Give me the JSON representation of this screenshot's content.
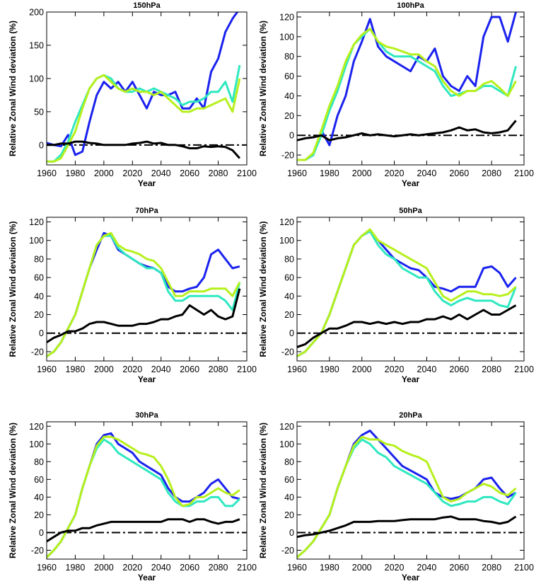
{
  "figure": {
    "ylabel": "Relative Zonal Wind deviation (%)",
    "xlabel": "Year"
  },
  "colors": {
    "blue": "#1a22ee",
    "cyan": "#2ee8c0",
    "lime": "#b6f01c",
    "black": "#000000"
  },
  "chart_data": [
    {
      "type": "line",
      "title": "150hPa",
      "xlabel": "Year",
      "ylabel": "Relative Zonal Wind deviation (%)",
      "xlim": [
        1960,
        2100
      ],
      "ylim": [
        -30,
        200
      ],
      "xticks": [
        1960,
        1980,
        2000,
        2020,
        2040,
        2060,
        2080,
        2100
      ],
      "yticks": [
        0,
        50,
        100,
        150,
        200
      ],
      "grid": false,
      "reference_line": 0,
      "x": [
        1960,
        1965,
        1970,
        1975,
        1980,
        1985,
        1990,
        1995,
        2000,
        2005,
        2010,
        2015,
        2020,
        2025,
        2030,
        2035,
        2040,
        2045,
        2050,
        2055,
        2060,
        2065,
        2070,
        2075,
        2080,
        2085,
        2090,
        2095
      ],
      "series": [
        {
          "color": "blue",
          "values": [
            3,
            0,
            -2,
            15,
            -15,
            -10,
            35,
            75,
            95,
            85,
            95,
            80,
            95,
            75,
            55,
            80,
            75,
            75,
            80,
            55,
            55,
            70,
            55,
            110,
            130,
            170,
            190,
            205
          ]
        },
        {
          "color": "cyan",
          "values": [
            -25,
            -25,
            -15,
            5,
            35,
            60,
            85,
            100,
            105,
            100,
            85,
            80,
            80,
            85,
            80,
            85,
            80,
            75,
            70,
            60,
            65,
            65,
            70,
            80,
            80,
            95,
            65,
            120
          ]
        },
        {
          "color": "lime",
          "values": [
            -25,
            -25,
            -20,
            0,
            20,
            55,
            85,
            100,
            105,
            95,
            85,
            80,
            85,
            80,
            80,
            75,
            80,
            70,
            60,
            50,
            50,
            55,
            55,
            60,
            65,
            70,
            50,
            100
          ]
        },
        {
          "color": "black",
          "values": [
            0,
            0,
            2,
            2,
            5,
            5,
            3,
            2,
            0,
            0,
            0,
            0,
            2,
            3,
            5,
            2,
            3,
            0,
            0,
            -2,
            -5,
            -5,
            -2,
            -3,
            -2,
            -3,
            -8,
            -20
          ]
        }
      ]
    },
    {
      "type": "line",
      "title": "100hPa",
      "xlabel": "Year",
      "ylabel": "Relative Zonal Wind deviation (%)",
      "xlim": [
        1960,
        2100
      ],
      "ylim": [
        -30,
        125
      ],
      "xticks": [
        1960,
        1980,
        2000,
        2020,
        2040,
        2060,
        2080,
        2100
      ],
      "yticks": [
        -20,
        0,
        20,
        40,
        60,
        80,
        100,
        120
      ],
      "grid": false,
      "reference_line": 0,
      "x": [
        1960,
        1965,
        1970,
        1975,
        1980,
        1985,
        1990,
        1995,
        2000,
        2005,
        2010,
        2015,
        2020,
        2025,
        2030,
        2035,
        2040,
        2045,
        2050,
        2055,
        2060,
        2065,
        2070,
        2075,
        2080,
        2085,
        2090,
        2095
      ],
      "series": [
        {
          "color": "blue",
          "values": [
            -25,
            -25,
            -20,
            5,
            -10,
            20,
            40,
            75,
            95,
            118,
            90,
            80,
            75,
            70,
            65,
            80,
            75,
            88,
            60,
            50,
            45,
            60,
            50,
            100,
            120,
            120,
            95,
            125
          ]
        },
        {
          "color": "cyan",
          "values": [
            -25,
            -25,
            -20,
            0,
            25,
            45,
            70,
            92,
            100,
            108,
            95,
            85,
            80,
            80,
            80,
            75,
            70,
            65,
            50,
            40,
            42,
            45,
            45,
            50,
            50,
            45,
            40,
            70
          ]
        },
        {
          "color": "lime",
          "values": [
            -25,
            -25,
            -18,
            5,
            30,
            50,
            75,
            92,
            102,
            108,
            95,
            90,
            88,
            85,
            82,
            82,
            75,
            70,
            55,
            45,
            40,
            45,
            45,
            52,
            55,
            48,
            40,
            55
          ]
        },
        {
          "color": "black",
          "values": [
            -5,
            -3,
            -2,
            0,
            -5,
            -3,
            -2,
            0,
            2,
            0,
            1,
            0,
            -1,
            0,
            1,
            0,
            1,
            2,
            3,
            5,
            8,
            5,
            6,
            3,
            2,
            3,
            5,
            15
          ]
        }
      ]
    },
    {
      "type": "line",
      "title": "70hPa",
      "xlabel": "Year",
      "ylabel": "Relative Zonal Wind deviation (%)",
      "xlim": [
        1960,
        2100
      ],
      "ylim": [
        -30,
        125
      ],
      "xticks": [
        1960,
        1980,
        2000,
        2020,
        2040,
        2060,
        2080,
        2100
      ],
      "yticks": [
        -20,
        0,
        20,
        40,
        60,
        80,
        100,
        120
      ],
      "grid": false,
      "reference_line": 0,
      "x": [
        1960,
        1965,
        1970,
        1975,
        1980,
        1985,
        1990,
        1995,
        2000,
        2005,
        2010,
        2015,
        2020,
        2025,
        2030,
        2035,
        2040,
        2045,
        2050,
        2055,
        2060,
        2065,
        2070,
        2075,
        2080,
        2085,
        2090,
        2095
      ],
      "series": [
        {
          "color": "blue",
          "values": [
            -25,
            -20,
            -10,
            5,
            20,
            45,
            70,
            90,
            108,
            105,
            90,
            85,
            80,
            75,
            72,
            70,
            65,
            50,
            45,
            45,
            48,
            50,
            60,
            85,
            90,
            80,
            70,
            72
          ]
        },
        {
          "color": "cyan",
          "values": [
            -25,
            -20,
            -10,
            5,
            20,
            45,
            70,
            95,
            105,
            105,
            92,
            85,
            80,
            75,
            70,
            70,
            65,
            45,
            35,
            35,
            40,
            40,
            40,
            40,
            40,
            35,
            25,
            55
          ]
        },
        {
          "color": "lime",
          "values": [
            -25,
            -20,
            -10,
            5,
            20,
            45,
            70,
            95,
            105,
            108,
            95,
            90,
            88,
            85,
            80,
            78,
            70,
            55,
            40,
            40,
            45,
            45,
            45,
            48,
            48,
            48,
            40,
            55
          ]
        },
        {
          "color": "black",
          "values": [
            -10,
            -5,
            -2,
            2,
            2,
            5,
            10,
            12,
            12,
            10,
            8,
            8,
            8,
            10,
            10,
            12,
            15,
            15,
            18,
            20,
            30,
            25,
            20,
            25,
            18,
            15,
            18,
            48
          ]
        }
      ]
    },
    {
      "type": "line",
      "title": "50hPa",
      "xlabel": "Year",
      "ylabel": "Relative Zonal Wind deviation (%)",
      "xlim": [
        1960,
        2100
      ],
      "ylim": [
        -30,
        125
      ],
      "xticks": [
        1960,
        1980,
        2000,
        2020,
        2040,
        2060,
        2080,
        2100
      ],
      "yticks": [
        -20,
        0,
        20,
        40,
        60,
        80,
        100,
        120
      ],
      "grid": false,
      "reference_line": 0,
      "x": [
        1960,
        1965,
        1970,
        1975,
        1980,
        1985,
        1990,
        1995,
        2000,
        2005,
        2010,
        2015,
        2020,
        2025,
        2030,
        2035,
        2040,
        2045,
        2050,
        2055,
        2060,
        2065,
        2070,
        2075,
        2080,
        2085,
        2090,
        2095
      ],
      "series": [
        {
          "color": "blue",
          "values": [
            -25,
            -20,
            -10,
            0,
            20,
            45,
            70,
            95,
            105,
            110,
            100,
            90,
            80,
            75,
            70,
            68,
            60,
            50,
            48,
            45,
            50,
            50,
            50,
            70,
            72,
            65,
            50,
            60
          ]
        },
        {
          "color": "cyan",
          "values": [
            -25,
            -20,
            -10,
            0,
            20,
            45,
            70,
            95,
            105,
            110,
            95,
            85,
            80,
            70,
            65,
            60,
            60,
            45,
            35,
            30,
            35,
            38,
            35,
            35,
            35,
            30,
            28,
            50
          ]
        },
        {
          "color": "lime",
          "values": [
            -25,
            -20,
            -10,
            0,
            20,
            45,
            70,
            95,
            105,
            112,
            100,
            95,
            90,
            85,
            80,
            75,
            70,
            55,
            40,
            35,
            40,
            45,
            45,
            42,
            42,
            40,
            42,
            50
          ]
        },
        {
          "color": "black",
          "values": [
            -15,
            -12,
            -5,
            0,
            5,
            5,
            8,
            12,
            12,
            10,
            12,
            10,
            12,
            10,
            12,
            12,
            15,
            15,
            18,
            15,
            20,
            15,
            20,
            25,
            20,
            20,
            25,
            30
          ]
        }
      ]
    },
    {
      "type": "line",
      "title": "30hPa",
      "xlabel": "Year",
      "ylabel": "Relative Zonal Wind deviation (%)",
      "xlim": [
        1960,
        2100
      ],
      "ylim": [
        -30,
        125
      ],
      "xticks": [
        1960,
        1980,
        2000,
        2020,
        2040,
        2060,
        2080,
        2100
      ],
      "yticks": [
        -20,
        0,
        20,
        40,
        60,
        80,
        100,
        120
      ],
      "grid": false,
      "reference_line": 0,
      "x": [
        1960,
        1965,
        1970,
        1975,
        1980,
        1985,
        1990,
        1995,
        2000,
        2005,
        2010,
        2015,
        2020,
        2025,
        2030,
        2035,
        2040,
        2045,
        2050,
        2055,
        2060,
        2065,
        2070,
        2075,
        2080,
        2085,
        2090,
        2095
      ],
      "series": [
        {
          "color": "blue",
          "values": [
            -28,
            -20,
            -10,
            5,
            20,
            50,
            75,
            100,
            110,
            112,
            100,
            95,
            90,
            80,
            75,
            70,
            65,
            50,
            40,
            35,
            35,
            40,
            45,
            55,
            60,
            50,
            40,
            38
          ]
        },
        {
          "color": "cyan",
          "values": [
            -28,
            -20,
            -10,
            5,
            20,
            50,
            75,
            95,
            105,
            100,
            90,
            85,
            80,
            75,
            70,
            65,
            60,
            45,
            35,
            30,
            30,
            35,
            35,
            40,
            40,
            30,
            30,
            38
          ]
        },
        {
          "color": "lime",
          "values": [
            -28,
            -20,
            -10,
            5,
            20,
            50,
            75,
            98,
            108,
            108,
            105,
            100,
            95,
            90,
            88,
            85,
            75,
            60,
            40,
            30,
            32,
            40,
            40,
            45,
            50,
            45,
            42,
            48
          ]
        },
        {
          "color": "black",
          "values": [
            -10,
            -5,
            0,
            2,
            2,
            5,
            5,
            8,
            10,
            12,
            12,
            12,
            12,
            12,
            12,
            12,
            12,
            15,
            15,
            15,
            12,
            15,
            15,
            12,
            10,
            12,
            12,
            15
          ]
        }
      ]
    },
    {
      "type": "line",
      "title": "20hPa",
      "xlabel": "Year",
      "ylabel": "Relative Zonal Wind deviation (%)",
      "xlim": [
        1960,
        2100
      ],
      "ylim": [
        -30,
        125
      ],
      "xticks": [
        1960,
        1980,
        2000,
        2020,
        2040,
        2060,
        2080,
        2100
      ],
      "yticks": [
        -20,
        0,
        20,
        40,
        60,
        80,
        100,
        120
      ],
      "grid": false,
      "reference_line": 0,
      "x": [
        1960,
        1965,
        1970,
        1975,
        1980,
        1985,
        1990,
        1995,
        2000,
        2005,
        2010,
        2015,
        2020,
        2025,
        2030,
        2035,
        2040,
        2045,
        2050,
        2055,
        2060,
        2065,
        2070,
        2075,
        2080,
        2085,
        2090,
        2095
      ],
      "series": [
        {
          "color": "blue",
          "values": [
            -28,
            -20,
            -10,
            5,
            20,
            50,
            75,
            100,
            110,
            115,
            105,
            95,
            85,
            75,
            70,
            65,
            60,
            45,
            40,
            38,
            40,
            45,
            50,
            60,
            62,
            50,
            40,
            45
          ]
        },
        {
          "color": "cyan",
          "values": [
            -28,
            -20,
            -10,
            5,
            20,
            50,
            75,
            95,
            105,
            100,
            90,
            85,
            75,
            70,
            65,
            60,
            55,
            45,
            35,
            30,
            32,
            35,
            35,
            40,
            40,
            35,
            32,
            45
          ]
        },
        {
          "color": "lime",
          "values": [
            -28,
            -20,
            -10,
            5,
            20,
            50,
            75,
            98,
            108,
            105,
            105,
            100,
            98,
            92,
            88,
            85,
            80,
            60,
            40,
            35,
            38,
            45,
            50,
            55,
            52,
            45,
            42,
            50
          ]
        },
        {
          "color": "black",
          "values": [
            -5,
            -3,
            -2,
            0,
            2,
            5,
            8,
            12,
            12,
            12,
            13,
            13,
            13,
            14,
            15,
            15,
            15,
            15,
            17,
            18,
            15,
            15,
            15,
            13,
            12,
            10,
            12,
            18
          ]
        }
      ]
    }
  ]
}
